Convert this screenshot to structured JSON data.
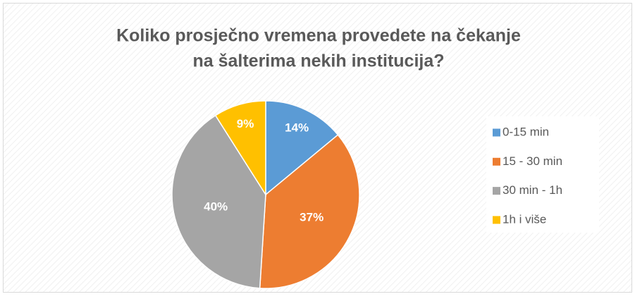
{
  "chart_data": {
    "type": "pie",
    "title": [
      "Koliko prosječno vremena provedete na čekanje",
      "na šalterima nekih institucija?"
    ],
    "categories": [
      "0-15 min",
      "15 - 30 min",
      "30 min - 1h",
      "1h i više"
    ],
    "values": [
      14,
      37,
      40,
      9
    ],
    "value_labels": [
      "14%",
      "37%",
      "40%",
      "9%"
    ],
    "colors": [
      "#5b9bd5",
      "#ed7d31",
      "#a5a5a5",
      "#ffc000"
    ],
    "legend": "right"
  }
}
